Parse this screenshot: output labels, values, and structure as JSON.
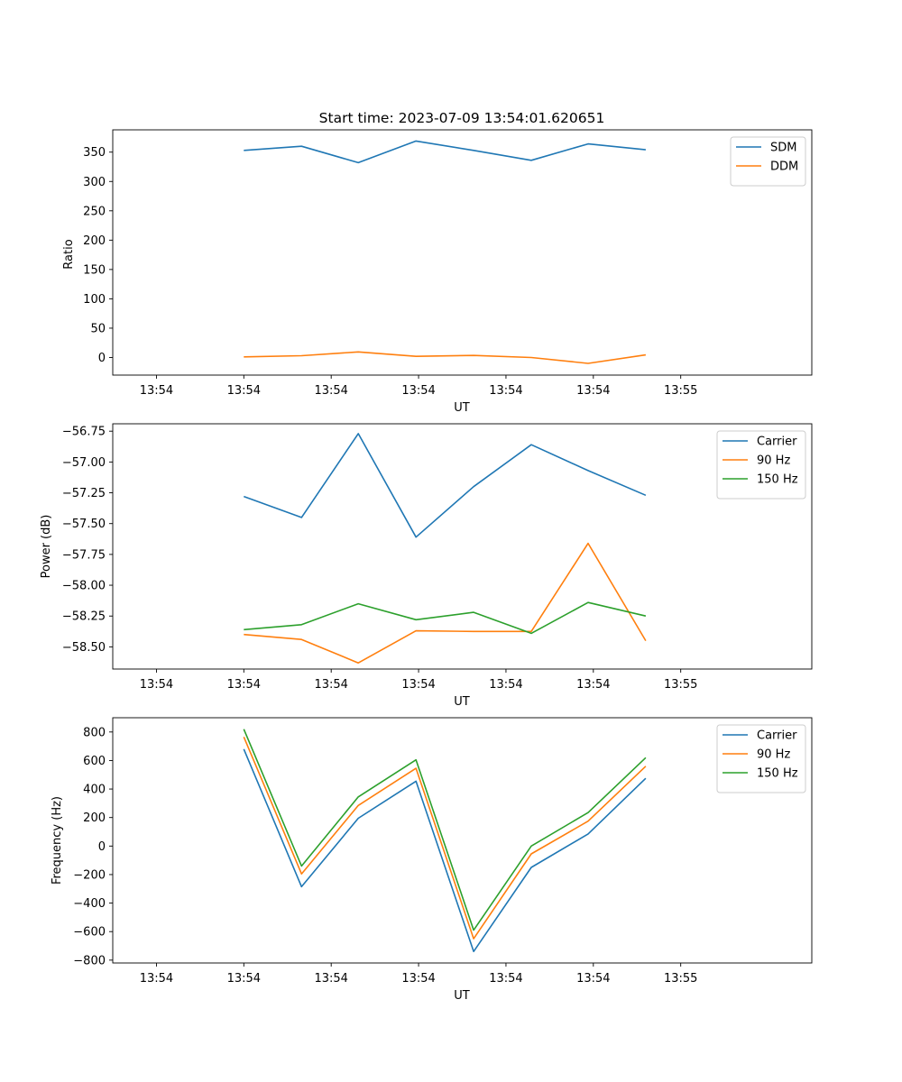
{
  "chart_data": [
    {
      "type": "line",
      "title": "Start time: 2023-07-09 13:54:01.620651",
      "xlabel": "UT",
      "ylabel": "Ratio",
      "x": [
        1.0,
        1.66,
        2.31,
        2.97,
        3.63,
        4.29,
        4.94,
        5.6
      ],
      "xlim": [
        -0.5,
        7.5
      ],
      "xticks": [
        0,
        1,
        2,
        3,
        4,
        5,
        6
      ],
      "xtick_labels": [
        "13:54",
        "13:54",
        "13:54",
        "13:54",
        "13:54",
        "13:54",
        "13:55"
      ],
      "ylim": [
        -30,
        388
      ],
      "yticks": [
        0,
        50,
        100,
        150,
        200,
        250,
        300,
        350
      ],
      "ytick_labels": [
        "0",
        "50",
        "100",
        "150",
        "200",
        "250",
        "300",
        "350"
      ],
      "legend": "upper-right",
      "series": [
        {
          "name": "SDM",
          "color": "#1f77b4",
          "values": [
            353,
            360,
            332,
            369,
            353,
            336,
            364,
            354
          ]
        },
        {
          "name": "DDM",
          "color": "#ff7f0e",
          "values": [
            1,
            3,
            9.5,
            2,
            3.5,
            0,
            -10,
            4.5
          ]
        }
      ]
    },
    {
      "type": "line",
      "title": "",
      "xlabel": "UT",
      "ylabel": "Power (dB)",
      "x": [
        1.0,
        1.66,
        2.31,
        2.97,
        3.63,
        4.29,
        4.94,
        5.6
      ],
      "xlim": [
        -0.5,
        7.5
      ],
      "xticks": [
        0,
        1,
        2,
        3,
        4,
        5,
        6
      ],
      "xtick_labels": [
        "13:54",
        "13:54",
        "13:54",
        "13:54",
        "13:54",
        "13:54",
        "13:55"
      ],
      "ylim": [
        -58.68,
        -56.69
      ],
      "yticks": [
        -56.75,
        -57.0,
        -57.25,
        -57.5,
        -57.75,
        -58.0,
        -58.25,
        -58.5
      ],
      "ytick_labels": [
        "−56.75",
        "−57.00",
        "−57.25",
        "−57.50",
        "−57.75",
        "−58.00",
        "−58.25",
        "−58.50"
      ],
      "legend": "upper-right",
      "series": [
        {
          "name": "Carrier",
          "color": "#1f77b4",
          "values": [
            -57.28,
            -57.45,
            -56.77,
            -57.61,
            -57.2,
            -56.86,
            -57.07,
            -57.27
          ]
        },
        {
          "name": "90 Hz",
          "color": "#ff7f0e",
          "values": [
            -58.4,
            -58.44,
            -58.63,
            -58.37,
            -58.375,
            -58.375,
            -57.66,
            -58.45
          ]
        },
        {
          "name": "150 Hz",
          "color": "#2ca02c",
          "values": [
            -58.36,
            -58.32,
            -58.15,
            -58.28,
            -58.22,
            -58.39,
            -58.14,
            -58.25
          ]
        }
      ]
    },
    {
      "type": "line",
      "title": "",
      "xlabel": "UT",
      "ylabel": "Frequency (Hz)",
      "x": [
        1.0,
        1.66,
        2.31,
        2.97,
        3.63,
        4.29,
        4.94,
        5.6
      ],
      "xlim": [
        -0.5,
        7.5
      ],
      "xticks": [
        0,
        1,
        2,
        3,
        4,
        5,
        6
      ],
      "xtick_labels": [
        "13:54",
        "13:54",
        "13:54",
        "13:54",
        "13:54",
        "13:54",
        "13:55"
      ],
      "ylim": [
        -820,
        900
      ],
      "yticks": [
        -800,
        -600,
        -400,
        -200,
        0,
        200,
        400,
        600,
        800
      ],
      "ytick_labels": [
        "−800",
        "−600",
        "−400",
        "−200",
        "0",
        "200",
        "400",
        "600",
        "800"
      ],
      "legend": "upper-right",
      "series": [
        {
          "name": "Carrier",
          "color": "#1f77b4",
          "values": [
            680,
            -285,
            195,
            455,
            -740,
            -150,
            85,
            475
          ]
        },
        {
          "name": "90 Hz",
          "color": "#ff7f0e",
          "values": [
            765,
            -195,
            285,
            545,
            -650,
            -55,
            175,
            560
          ]
        },
        {
          "name": "150 Hz",
          "color": "#2ca02c",
          "values": [
            820,
            -140,
            345,
            605,
            -590,
            0,
            235,
            620
          ]
        }
      ]
    }
  ]
}
